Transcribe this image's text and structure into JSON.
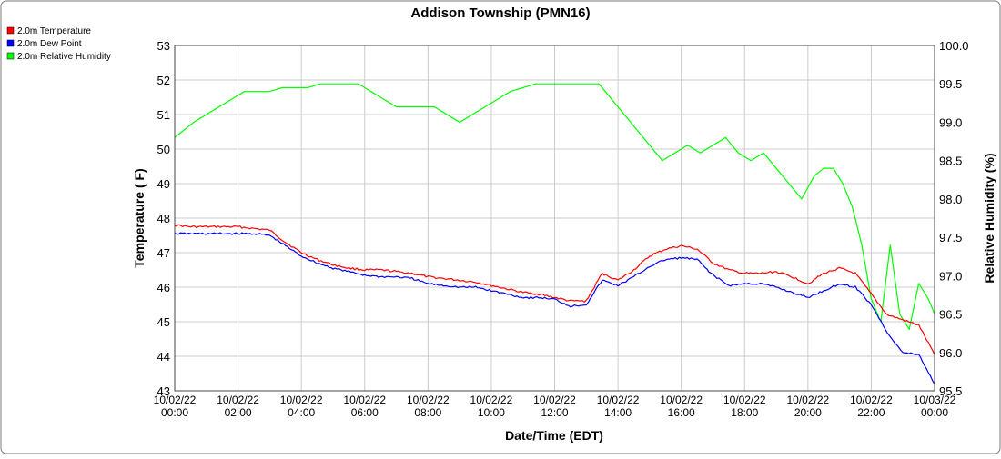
{
  "chart_data": {
    "type": "line",
    "title": "Addison Township (PMN16)",
    "xlabel": "Date/Time (EDT)",
    "ylabel_left": "Temperature ( F)",
    "ylabel_right": "Relative Humidity (%)",
    "ylim_left": [
      43,
      53
    ],
    "ylim_right": [
      95.5,
      100.0
    ],
    "xlim_hours": [
      0,
      24
    ],
    "grid": true,
    "legend_position": "top-left",
    "x_ticks": [
      {
        "date": "10/02/22",
        "time": "00:00"
      },
      {
        "date": "10/02/22",
        "time": "02:00"
      },
      {
        "date": "10/02/22",
        "time": "04:00"
      },
      {
        "date": "10/02/22",
        "time": "06:00"
      },
      {
        "date": "10/02/22",
        "time": "08:00"
      },
      {
        "date": "10/02/22",
        "time": "10:00"
      },
      {
        "date": "10/02/22",
        "time": "12:00"
      },
      {
        "date": "10/02/22",
        "time": "14:00"
      },
      {
        "date": "10/02/22",
        "time": "16:00"
      },
      {
        "date": "10/02/22",
        "time": "18:00"
      },
      {
        "date": "10/02/22",
        "time": "20:00"
      },
      {
        "date": "10/02/22",
        "time": "22:00"
      },
      {
        "date": "10/03/22",
        "time": "00:00"
      }
    ],
    "y_ticks_left": [
      "43",
      "44",
      "45",
      "46",
      "47",
      "48",
      "49",
      "50",
      "51",
      "52",
      "53"
    ],
    "y_ticks_right": [
      "95.5",
      "96.0",
      "96.5",
      "97.0",
      "97.5",
      "98.0",
      "98.5",
      "99.0",
      "99.5",
      "100.0"
    ],
    "series": [
      {
        "name": "2.0m Temperature",
        "color": "#ff0000",
        "axis": "left",
        "x": [
          0,
          0.5,
          1,
          1.5,
          2,
          2.5,
          3,
          3.5,
          4,
          4.5,
          5,
          5.5,
          6,
          6.5,
          7,
          7.5,
          8,
          8.5,
          9,
          9.5,
          10,
          10.5,
          11,
          11.5,
          12,
          12.5,
          13,
          13.5,
          14,
          14.5,
          15,
          15.5,
          16,
          16.5,
          17,
          17.5,
          18,
          18.5,
          19,
          19.5,
          20,
          20.5,
          21,
          21.5,
          22,
          22.5,
          23,
          23.5,
          24
        ],
        "y": [
          47.8,
          47.75,
          47.75,
          47.75,
          47.75,
          47.7,
          47.65,
          47.3,
          47.0,
          46.8,
          46.65,
          46.55,
          46.5,
          46.5,
          46.45,
          46.4,
          46.3,
          46.25,
          46.2,
          46.15,
          46.05,
          45.95,
          45.85,
          45.8,
          45.7,
          45.6,
          45.6,
          46.4,
          46.2,
          46.5,
          46.9,
          47.1,
          47.2,
          47.1,
          46.7,
          46.5,
          46.4,
          46.4,
          46.45,
          46.3,
          46.1,
          46.4,
          46.55,
          46.4,
          45.8,
          45.2,
          45.05,
          44.9,
          44.05
        ]
      },
      {
        "name": "2.0m Dew Point",
        "color": "#0000ff",
        "axis": "left",
        "x": [
          0,
          0.5,
          1,
          1.5,
          2,
          2.5,
          3,
          3.5,
          4,
          4.5,
          5,
          5.5,
          6,
          6.5,
          7,
          7.5,
          8,
          8.5,
          9,
          9.5,
          10,
          10.5,
          11,
          11.5,
          12,
          12.5,
          13,
          13.5,
          14,
          14.5,
          15,
          15.5,
          16,
          16.5,
          17,
          17.5,
          18,
          18.5,
          19,
          19.5,
          20,
          20.5,
          21,
          21.5,
          22,
          22.5,
          23,
          23.5,
          24
        ],
        "y": [
          47.55,
          47.55,
          47.55,
          47.55,
          47.55,
          47.55,
          47.5,
          47.2,
          46.9,
          46.7,
          46.55,
          46.45,
          46.35,
          46.3,
          46.3,
          46.25,
          46.1,
          46.05,
          46.0,
          46.0,
          45.9,
          45.8,
          45.7,
          45.7,
          45.65,
          45.45,
          45.5,
          46.2,
          46.05,
          46.3,
          46.6,
          46.8,
          46.85,
          46.8,
          46.35,
          46.05,
          46.1,
          46.1,
          46.0,
          45.85,
          45.7,
          45.9,
          46.1,
          46.0,
          45.5,
          44.7,
          44.1,
          44.05,
          43.2
        ]
      },
      {
        "name": "2.0m Relative Humidity",
        "color": "#00ff00",
        "axis": "right",
        "x": [
          0,
          0.3,
          0.6,
          1,
          1.4,
          1.8,
          2.2,
          2.6,
          3,
          3.4,
          3.8,
          4.2,
          4.6,
          5,
          5.4,
          5.8,
          6.2,
          6.6,
          7,
          7.4,
          7.8,
          8.2,
          8.6,
          9,
          9.4,
          9.8,
          10.2,
          10.6,
          11,
          11.4,
          11.8,
          12.2,
          12.6,
          13,
          13.4,
          13.8,
          14.2,
          14.6,
          15,
          15.4,
          15.8,
          16.2,
          16.6,
          17,
          17.4,
          17.8,
          18.2,
          18.6,
          19,
          19.4,
          19.8,
          20.2,
          20.5,
          20.8,
          21.1,
          21.4,
          21.7,
          22,
          22.3,
          22.6,
          22.9,
          23.2,
          23.5,
          23.8,
          24
        ],
        "y": [
          98.8,
          98.9,
          99.0,
          99.1,
          99.2,
          99.3,
          99.4,
          99.4,
          99.4,
          99.45,
          99.45,
          99.45,
          99.5,
          99.5,
          99.5,
          99.5,
          99.4,
          99.3,
          99.2,
          99.2,
          99.2,
          99.2,
          99.1,
          99.0,
          99.1,
          99.2,
          99.3,
          99.4,
          99.45,
          99.5,
          99.5,
          99.5,
          99.5,
          99.5,
          99.5,
          99.3,
          99.1,
          98.9,
          98.7,
          98.5,
          98.6,
          98.7,
          98.6,
          98.7,
          98.8,
          98.6,
          98.5,
          98.6,
          98.4,
          98.2,
          98.0,
          98.3,
          98.4,
          98.4,
          98.2,
          97.9,
          97.4,
          96.7,
          96.4,
          97.4,
          96.5,
          96.3,
          96.9,
          96.7,
          96.5
        ]
      }
    ]
  }
}
